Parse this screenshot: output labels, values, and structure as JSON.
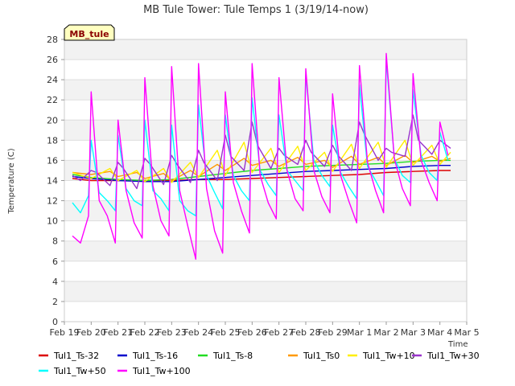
{
  "chart_data": {
    "type": "line",
    "title": "MB Tule Tower: Tule Temps 1 (3/19/14-now)",
    "badge": "MB_tule",
    "xlabel": "Time",
    "ylabel": "Temperature (C)",
    "xlim": [
      0,
      15
    ],
    "ylim": [
      0,
      28
    ],
    "y_ticks": [
      0,
      2,
      4,
      6,
      8,
      10,
      12,
      14,
      16,
      18,
      20,
      22,
      24,
      26,
      28
    ],
    "x_ticks": [
      {
        "v": 0,
        "label": "Feb 19"
      },
      {
        "v": 1,
        "label": "Feb 20"
      },
      {
        "v": 2,
        "label": "Feb 21"
      },
      {
        "v": 3,
        "label": "Feb 22"
      },
      {
        "v": 4,
        "label": "Feb 23"
      },
      {
        "v": 5,
        "label": "Feb 24"
      },
      {
        "v": 6,
        "label": "Feb 25"
      },
      {
        "v": 7,
        "label": "Feb 26"
      },
      {
        "v": 8,
        "label": "Feb 27"
      },
      {
        "v": 9,
        "label": "Feb 28"
      },
      {
        "v": 10,
        "label": "Feb 29"
      },
      {
        "v": 11,
        "label": "Mar 1"
      },
      {
        "v": 12,
        "label": "Mar 2"
      },
      {
        "v": 13,
        "label": "Mar 3"
      },
      {
        "v": 14,
        "label": "Mar 4"
      },
      {
        "v": 15,
        "label": "Mar 5"
      }
    ],
    "grid": true,
    "legend_position": "bottom",
    "series": [
      {
        "name": "Tul1_Ts-32",
        "color": "#dd0000",
        "x": [
          0.3,
          1,
          2,
          3,
          4,
          5,
          6,
          7,
          8,
          9,
          10,
          11,
          12,
          13,
          14,
          14.4
        ],
        "values": [
          14.2,
          14.0,
          14.0,
          14.0,
          14.0,
          14.1,
          14.1,
          14.2,
          14.3,
          14.4,
          14.5,
          14.6,
          14.8,
          14.9,
          15.0,
          15.0
        ]
      },
      {
        "name": "Tul1_Ts-16",
        "color": "#0000cc",
        "x": [
          0.3,
          1,
          2,
          3,
          4,
          5,
          6,
          7,
          8,
          9,
          10,
          11,
          12,
          13,
          14,
          14.4
        ],
        "values": [
          14.4,
          14.2,
          14.0,
          13.9,
          13.9,
          14.1,
          14.3,
          14.5,
          14.7,
          14.9,
          15.0,
          15.1,
          15.2,
          15.4,
          15.5,
          15.5
        ]
      },
      {
        "name": "Tul1_Ts-8",
        "color": "#22dd22",
        "x": [
          0.3,
          1,
          2,
          3,
          4,
          5,
          6,
          7,
          8,
          9,
          10,
          11,
          12,
          13,
          14,
          14.4
        ],
        "values": [
          14.6,
          14.3,
          14.1,
          14.0,
          14.1,
          14.4,
          14.7,
          15.0,
          15.2,
          15.4,
          15.5,
          15.6,
          15.7,
          15.9,
          16.0,
          16.0
        ]
      },
      {
        "name": "Tul1_Ts0",
        "color": "#ff9900",
        "x": [
          0.3,
          1,
          1.7,
          2,
          2.7,
          3,
          3.7,
          4,
          4.7,
          5,
          5.7,
          6,
          6.7,
          7,
          7.7,
          8,
          8.7,
          9,
          9.7,
          10,
          10.7,
          11,
          11.7,
          12,
          12.7,
          13,
          13.7,
          14,
          14.4
        ],
        "values": [
          14.8,
          14.6,
          14.9,
          14.4,
          14.8,
          14.2,
          14.7,
          14.0,
          15.0,
          14.4,
          15.6,
          15.0,
          16.2,
          15.5,
          16.0,
          15.4,
          16.3,
          15.6,
          16.0,
          15.3,
          16.4,
          15.6,
          16.3,
          15.5,
          16.5,
          15.8,
          16.4,
          15.9,
          16.2
        ]
      },
      {
        "name": "Tul1_Tw+10",
        "color": "#ffee00",
        "x": [
          0.3,
          1,
          1.7,
          2,
          2.7,
          3,
          3.7,
          4,
          4.7,
          5,
          5.7,
          6,
          6.7,
          7,
          7.7,
          8,
          8.7,
          9,
          9.7,
          10,
          10.7,
          11,
          11.7,
          12,
          12.7,
          13,
          13.7,
          14,
          14.4
        ],
        "values": [
          14.8,
          14.2,
          15.2,
          14.0,
          15.0,
          13.9,
          15.2,
          13.8,
          15.8,
          14.3,
          17.0,
          14.5,
          17.8,
          14.8,
          17.2,
          14.8,
          17.4,
          15.0,
          16.8,
          14.9,
          17.6,
          15.2,
          17.8,
          15.3,
          18.0,
          15.5,
          17.5,
          15.6,
          16.8
        ]
      },
      {
        "name": "Tul1_Tw+30",
        "color": "#9933cc",
        "x": [
          0.3,
          0.6,
          1,
          1.2,
          1.7,
          2,
          2.2,
          2.7,
          3,
          3.2,
          3.7,
          4,
          4.2,
          4.7,
          5,
          5.2,
          5.7,
          6,
          6.2,
          6.7,
          7,
          7.2,
          7.7,
          8,
          8.2,
          8.7,
          9,
          9.2,
          9.7,
          10,
          10.2,
          10.7,
          11,
          11.2,
          11.7,
          12,
          12.2,
          12.7,
          13,
          13.2,
          13.7,
          14,
          14.4
        ],
        "values": [
          14.5,
          14.0,
          15.0,
          14.8,
          13.5,
          15.8,
          15.2,
          13.2,
          16.2,
          15.6,
          13.6,
          16.5,
          15.6,
          13.8,
          17.0,
          15.8,
          14.0,
          18.5,
          16.4,
          15.0,
          19.8,
          17.5,
          15.2,
          17.2,
          16.5,
          15.6,
          18.0,
          16.8,
          15.4,
          17.5,
          16.5,
          15.0,
          19.8,
          18.5,
          16.0,
          17.2,
          16.8,
          16.4,
          20.5,
          18.0,
          16.6,
          18.0,
          17.2
        ]
      },
      {
        "name": "Tul1_Tw+50",
        "color": "#00ffff",
        "x": [
          0.3,
          0.6,
          0.9,
          1,
          1.3,
          1.6,
          1.9,
          2,
          2.3,
          2.6,
          2.9,
          3,
          3.3,
          3.6,
          3.9,
          4,
          4.3,
          4.6,
          4.9,
          5,
          5.3,
          5.6,
          5.9,
          6,
          6.3,
          6.6,
          6.9,
          7,
          7.3,
          7.6,
          7.9,
          8,
          8.3,
          8.6,
          8.9,
          9,
          9.3,
          9.6,
          9.9,
          10,
          10.3,
          10.6,
          10.9,
          11,
          11.3,
          11.6,
          11.9,
          12,
          12.3,
          12.6,
          12.9,
          13,
          13.3,
          13.6,
          13.9,
          14,
          14.3
        ],
        "values": [
          11.8,
          10.8,
          12.5,
          18.0,
          12.8,
          12.0,
          11.0,
          18.5,
          13.2,
          12.0,
          11.5,
          20.0,
          13.0,
          12.2,
          11.0,
          19.5,
          12.0,
          11.0,
          10.5,
          21.5,
          14.5,
          12.8,
          11.2,
          20.5,
          14.5,
          13.0,
          12.0,
          22.2,
          15.0,
          13.6,
          12.5,
          20.5,
          15.0,
          14.0,
          13.0,
          24.5,
          16.0,
          14.5,
          13.4,
          19.5,
          14.8,
          13.4,
          12.2,
          23.5,
          15.4,
          14.0,
          12.5,
          26.0,
          16.2,
          14.5,
          13.8,
          23.0,
          16.5,
          14.8,
          14.0,
          18.8,
          16.0
        ]
      },
      {
        "name": "Tul1_Tw+100",
        "color": "#ff00ff",
        "x": [
          0.3,
          0.6,
          0.9,
          1,
          1.3,
          1.6,
          1.9,
          2,
          2.3,
          2.6,
          2.9,
          3,
          3.3,
          3.6,
          3.9,
          4,
          4.3,
          4.6,
          4.9,
          5,
          5.3,
          5.6,
          5.9,
          6,
          6.3,
          6.6,
          6.9,
          7,
          7.3,
          7.6,
          7.9,
          8,
          8.3,
          8.6,
          8.9,
          9,
          9.3,
          9.6,
          9.9,
          10,
          10.3,
          10.6,
          10.9,
          11,
          11.3,
          11.6,
          11.9,
          12,
          12.3,
          12.6,
          12.9,
          13,
          13.3,
          13.6,
          13.9,
          14,
          14.3
        ],
        "values": [
          8.5,
          7.8,
          10.5,
          22.8,
          12.0,
          10.5,
          7.8,
          20.0,
          13.0,
          9.8,
          8.3,
          24.2,
          13.5,
          10.0,
          8.5,
          25.3,
          13.0,
          9.5,
          6.2,
          25.6,
          13.2,
          9.0,
          6.8,
          22.8,
          13.8,
          11.0,
          8.8,
          25.6,
          14.5,
          11.8,
          10.2,
          24.2,
          15.0,
          12.2,
          11.0,
          25.1,
          15.0,
          12.4,
          10.8,
          22.6,
          14.5,
          12.0,
          9.8,
          25.4,
          15.8,
          13.0,
          10.8,
          26.6,
          16.2,
          13.2,
          11.5,
          24.6,
          16.0,
          13.8,
          12.0,
          19.8,
          16.5
        ]
      }
    ]
  }
}
